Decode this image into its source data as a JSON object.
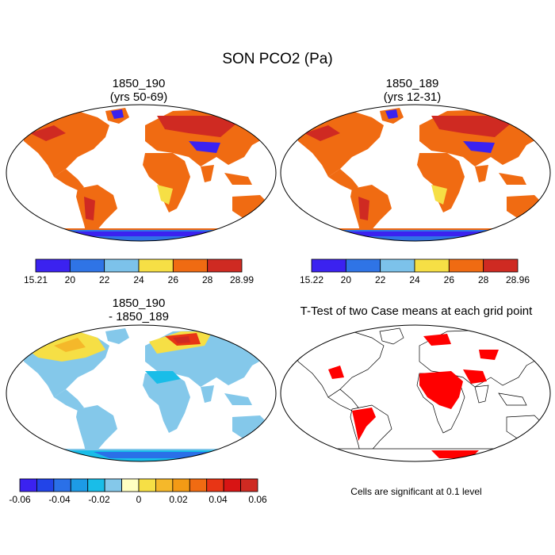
{
  "title": "SON PCO2 (Pa)",
  "panels": {
    "top_left": {
      "line1": "1850_190",
      "line2": "(yrs 50-69)"
    },
    "top_right": {
      "line1": "1850_189",
      "line2": "(yrs 12-31)"
    },
    "bottom_left": {
      "line1": "1850_190",
      "line2": "- 1850_189"
    },
    "bottom_right": {
      "line1": "T-Test of two Case means at each grid point"
    }
  },
  "colorbars": {
    "top_left": {
      "labels": [
        "15.21",
        "20",
        "22",
        "24",
        "26",
        "28",
        "28.99"
      ],
      "colors": [
        "#3b22f0",
        "#2f74e6",
        "#7cc2ea",
        "#f6df45",
        "#f06b12",
        "#cf2a22"
      ]
    },
    "top_right": {
      "labels": [
        "15.22",
        "20",
        "22",
        "24",
        "26",
        "28",
        "28.96"
      ],
      "colors": [
        "#3b22f0",
        "#2f74e6",
        "#7cc2ea",
        "#f6df45",
        "#f06b12",
        "#cf2a22"
      ]
    },
    "bottom_left": {
      "labels": [
        "-0.06",
        "-0.04",
        "-0.02",
        "0",
        "0.02",
        "0.04",
        "0.06"
      ],
      "colors": [
        "#3b22f0",
        "#2244e8",
        "#2a70e8",
        "#1d9be6",
        "#19bde8",
        "#84c8ea",
        "#ffffc2",
        "#f6df45",
        "#f5b82a",
        "#f39a15",
        "#f06b12",
        "#e83515",
        "#d81414",
        "#cf2a22"
      ]
    }
  },
  "significance_note": "Cells are significant at 0.1 level",
  "colors": {
    "land_warm": "#f06b12",
    "land_hot": "#cf2a22",
    "land_mid": "#f6df45",
    "land_cool": "#2f74e6",
    "land_cold": "#3b22f0",
    "ocean": "#ffffff",
    "diff_pos": "#f06b12",
    "diff_neg": "#84c8ea",
    "sig": "#ff0000"
  }
}
